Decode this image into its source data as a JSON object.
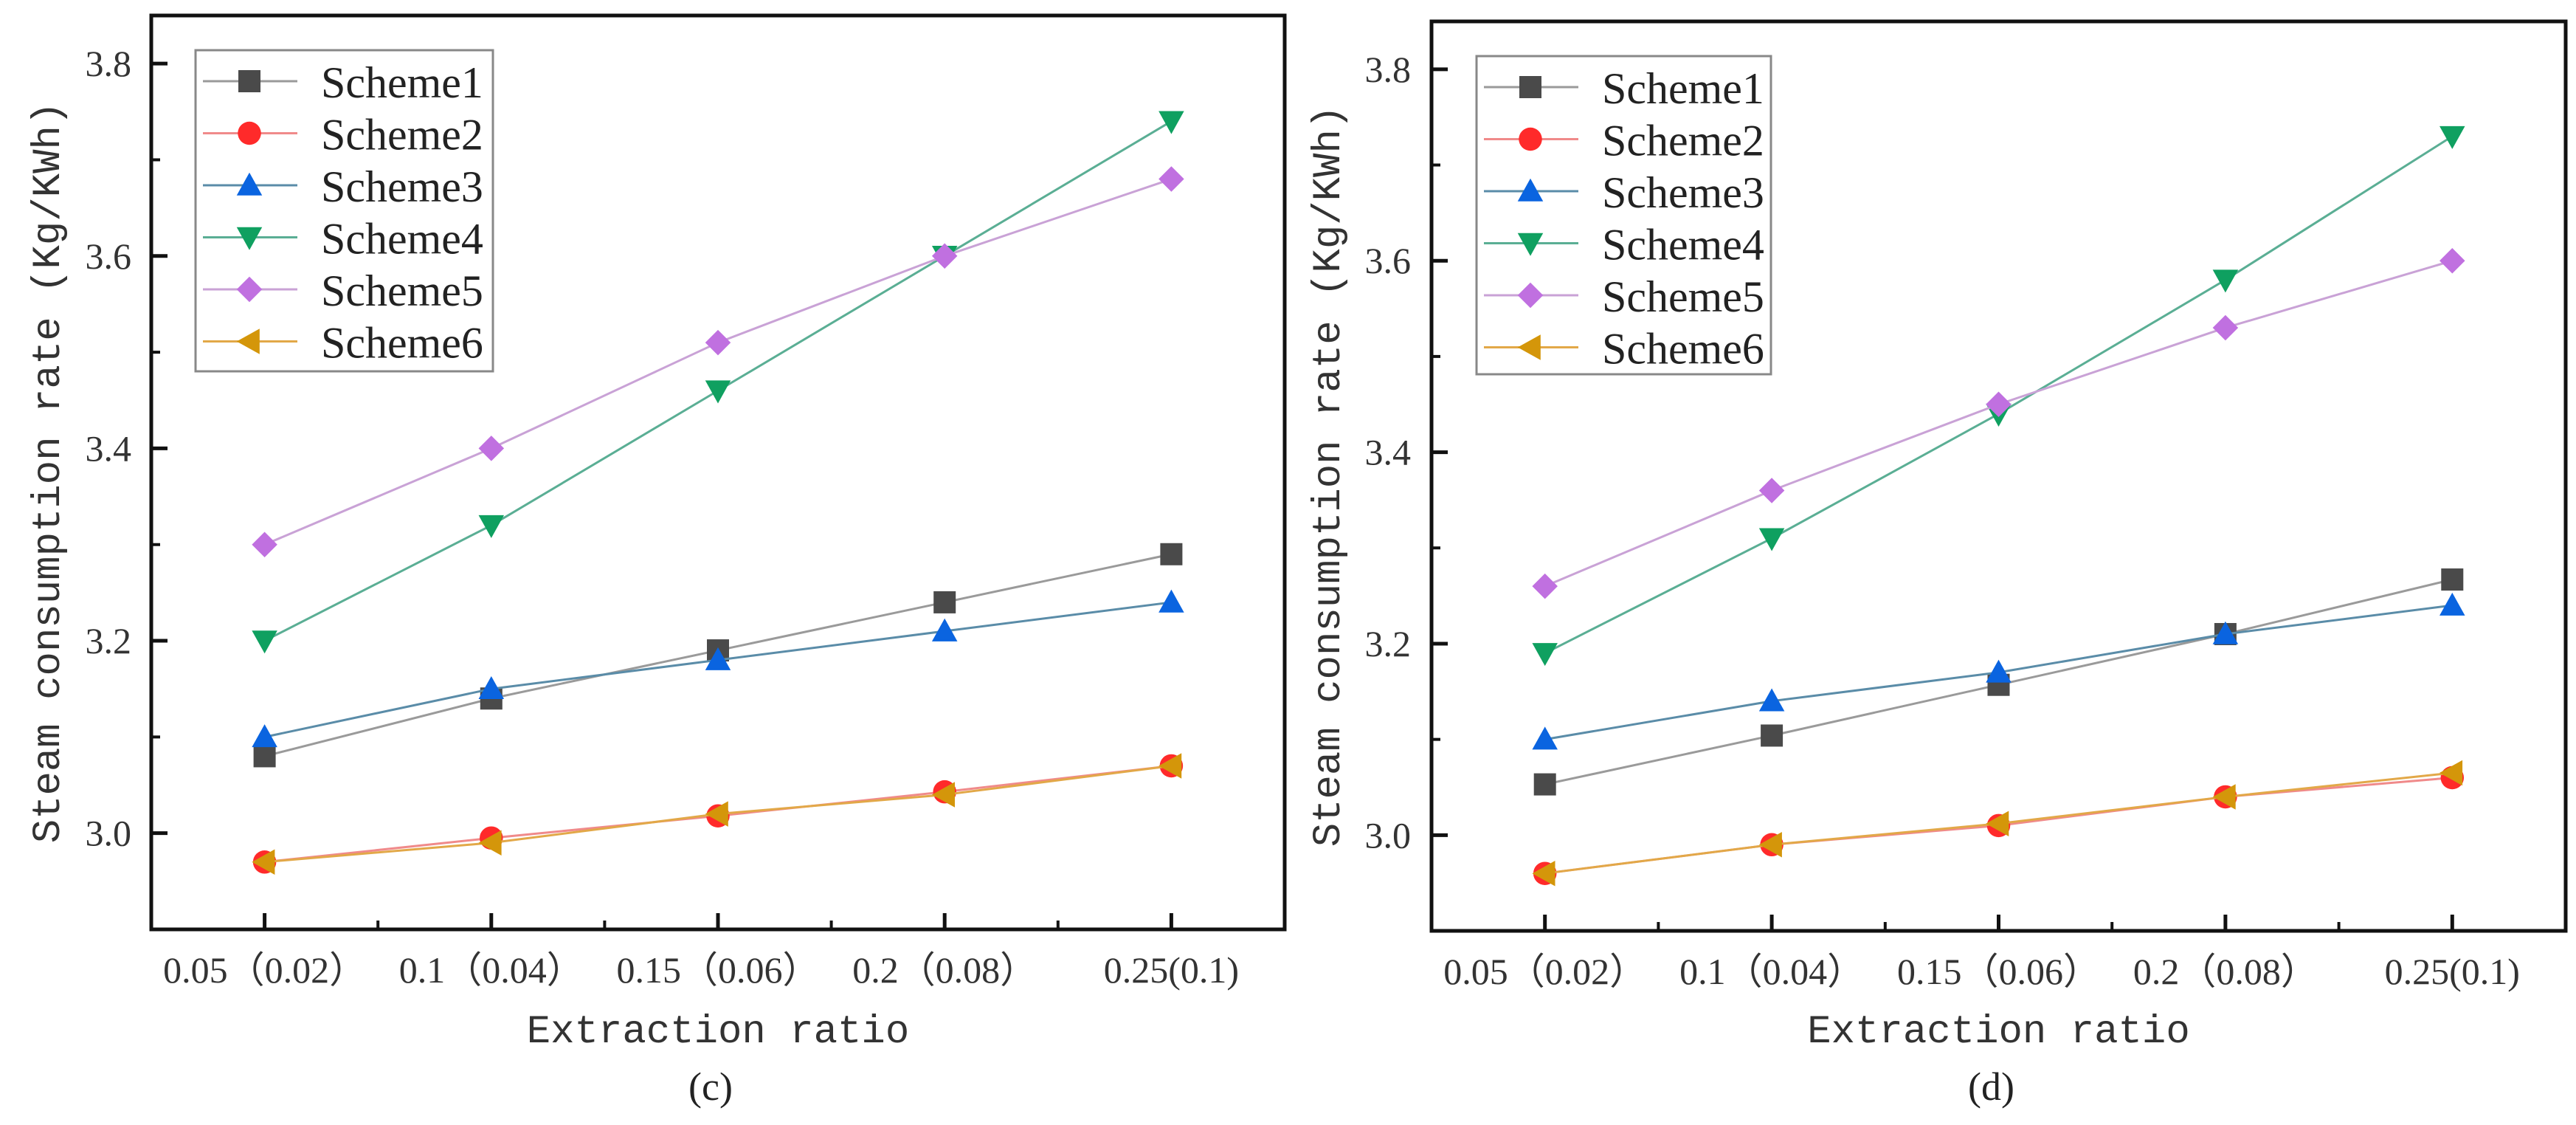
{
  "chart_data": [
    {
      "type": "line",
      "panel_label": "(c)",
      "xlabel": "Extraction ratio",
      "ylabel": "Steam consumption rate (Kg/KWh)",
      "categories": [
        "0.05（0.02）",
        "0.1（0.04）",
        "0.15（0.06）",
        "0.2（0.08）",
        "0.25(0.1)"
      ],
      "ylim": [
        2.9,
        3.85
      ],
      "yticks": [
        "3.0",
        "3.2",
        "3.4",
        "3.6",
        "3.8"
      ],
      "grid": false,
      "legend_position": "top-left",
      "series": [
        {
          "name": "Scheme1",
          "marker": "square",
          "color": "#4a4a4a",
          "line_color": "#9a9a9a",
          "values": [
            3.08,
            3.14,
            3.19,
            3.24,
            3.29
          ]
        },
        {
          "name": "Scheme2",
          "marker": "circle",
          "color": "#ff2a2a",
          "line_color": "#f08a8a",
          "values": [
            2.97,
            2.995,
            3.018,
            3.043,
            3.07
          ]
        },
        {
          "name": "Scheme3",
          "marker": "triangle-up",
          "color": "#0a64e0",
          "line_color": "#5a8ca8",
          "values": [
            3.1,
            3.15,
            3.18,
            3.21,
            3.24
          ]
        },
        {
          "name": "Scheme4",
          "marker": "triangle-down",
          "color": "#0fa060",
          "line_color": "#5aae94",
          "values": [
            3.2,
            3.32,
            3.46,
            3.6,
            3.74
          ]
        },
        {
          "name": "Scheme5",
          "marker": "diamond",
          "color": "#c070e0",
          "line_color": "#c9a2d6",
          "values": [
            3.3,
            3.4,
            3.51,
            3.6,
            3.68
          ]
        },
        {
          "name": "Scheme6",
          "marker": "triangle-left",
          "color": "#d4960a",
          "line_color": "#e2a848",
          "values": [
            2.97,
            2.99,
            3.02,
            3.04,
            3.07
          ]
        }
      ]
    },
    {
      "type": "line",
      "panel_label": "(d)",
      "xlabel": "Extraction ratio",
      "ylabel": "Steam consumption rate (Kg/KWh)",
      "categories": [
        "0.05（0.02）",
        "0.1（0.04）",
        "0.15（0.06）",
        "0.2（0.08）",
        "0.25(0.1)"
      ],
      "ylim": [
        2.9,
        3.85
      ],
      "yticks": [
        "3.0",
        "3.2",
        "3.4",
        "3.6",
        "3.8"
      ],
      "grid": false,
      "legend_position": "top-left",
      "series": [
        {
          "name": "Scheme1",
          "marker": "square",
          "color": "#4a4a4a",
          "line_color": "#9a9a9a",
          "values": [
            3.053,
            3.104,
            3.157,
            3.21,
            3.267
          ]
        },
        {
          "name": "Scheme2",
          "marker": "circle",
          "color": "#ff2a2a",
          "line_color": "#f08a8a",
          "values": [
            2.96,
            2.99,
            3.01,
            3.04,
            3.06
          ]
        },
        {
          "name": "Scheme3",
          "marker": "triangle-up",
          "color": "#0a64e0",
          "line_color": "#5a8ca8",
          "values": [
            3.1,
            3.14,
            3.17,
            3.21,
            3.24
          ]
        },
        {
          "name": "Scheme4",
          "marker": "triangle-down",
          "color": "#0fa060",
          "line_color": "#5aae94",
          "values": [
            3.19,
            3.31,
            3.44,
            3.58,
            3.73
          ]
        },
        {
          "name": "Scheme5",
          "marker": "diamond",
          "color": "#c070e0",
          "line_color": "#c9a2d6",
          "values": [
            3.26,
            3.36,
            3.45,
            3.53,
            3.6
          ]
        },
        {
          "name": "Scheme6",
          "marker": "triangle-left",
          "color": "#d4960a",
          "line_color": "#e2a848",
          "values": [
            2.96,
            2.99,
            3.012,
            3.04,
            3.065
          ]
        }
      ]
    }
  ]
}
